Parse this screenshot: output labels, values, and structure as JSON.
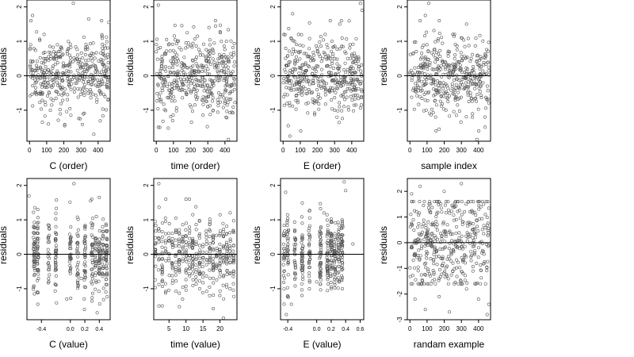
{
  "chart_data": [
    {
      "type": "scatter",
      "xlabel": "C (order)",
      "ylabel": "residuals",
      "xlim": [
        -15,
        470
      ],
      "ylim": [
        -1.9,
        2.2
      ],
      "xticks": [
        0,
        100,
        200,
        300,
        400
      ],
      "xtick_labels": [
        "0",
        "100",
        "200",
        "300",
        "400"
      ],
      "yticks": [
        -1,
        0,
        1,
        2
      ],
      "ytick_labels": [
        "-1",
        "0",
        "1",
        "2"
      ],
      "hline": 0,
      "grid": false,
      "points": [
        [
          5,
          0.8
        ],
        [
          18,
          1.75
        ],
        [
          40,
          0.3
        ],
        [
          75,
          -1.35
        ],
        [
          85,
          1.2
        ],
        [
          110,
          -1.4
        ],
        [
          145,
          0.5
        ],
        [
          190,
          0.6
        ],
        [
          205,
          -1.45
        ],
        [
          255,
          2.1
        ],
        [
          295,
          -1.25
        ],
        [
          345,
          1.65
        ],
        [
          375,
          -1.7
        ],
        [
          420,
          1.6
        ],
        [
          440,
          -0.6
        ],
        [
          462,
          1.55
        ]
      ]
    },
    {
      "type": "scatter",
      "xlabel": "time (order)",
      "ylabel": "residuals",
      "xlim": [
        -15,
        470
      ],
      "ylim": [
        -1.9,
        2.2
      ],
      "xticks": [
        0,
        100,
        200,
        300,
        400
      ],
      "xtick_labels": [
        "0",
        "100",
        "200",
        "300",
        "400"
      ],
      "yticks": [
        -1,
        0,
        1,
        2
      ],
      "ytick_labels": [
        "-1",
        "0",
        "1",
        "2"
      ],
      "hline": 0,
      "grid": false,
      "points": [
        [
          12,
          2.05
        ],
        [
          20,
          -1.5
        ],
        [
          60,
          1.05
        ],
        [
          95,
          -1.3
        ],
        [
          120,
          0.6
        ],
        [
          180,
          1.25
        ],
        [
          205,
          -1.35
        ],
        [
          240,
          1.15
        ],
        [
          300,
          -0.9
        ],
        [
          345,
          1.6
        ],
        [
          395,
          0.2
        ],
        [
          420,
          -1.85
        ],
        [
          455,
          -0.4
        ]
      ]
    },
    {
      "type": "scatter",
      "xlabel": "E (order)",
      "ylabel": "residuals",
      "xlim": [
        -15,
        470
      ],
      "ylim": [
        -1.9,
        2.2
      ],
      "xticks": [
        0,
        100,
        200,
        300,
        400
      ],
      "xtick_labels": [
        "0",
        "100",
        "200",
        "300",
        "400"
      ],
      "yticks": [
        -1,
        0,
        1,
        2
      ],
      "ytick_labels": [
        "-1",
        "0",
        "1",
        "2"
      ],
      "hline": 0,
      "grid": false,
      "points": [
        [
          5,
          1.2
        ],
        [
          30,
          -1.45
        ],
        [
          40,
          -1.75
        ],
        [
          55,
          1.8
        ],
        [
          90,
          1.2
        ],
        [
          150,
          -0.4
        ],
        [
          200,
          0.8
        ],
        [
          245,
          1.2
        ],
        [
          300,
          -1.0
        ],
        [
          330,
          1.5
        ],
        [
          390,
          0.9
        ],
        [
          450,
          2.1
        ],
        [
          460,
          1.9
        ]
      ]
    },
    {
      "type": "scatter",
      "xlabel": "sample index",
      "ylabel": "residuals",
      "xlim": [
        -15,
        470
      ],
      "ylim": [
        -1.9,
        2.2
      ],
      "xticks": [
        0,
        100,
        200,
        300,
        400
      ],
      "xtick_labels": [
        "0",
        "100",
        "200",
        "300",
        "400"
      ],
      "yticks": [
        -1,
        0,
        1,
        2
      ],
      "ytick_labels": [
        "-1",
        "0",
        "1",
        "2"
      ],
      "hline": 0,
      "grid": false,
      "points": [
        [
          60,
          1.6
        ],
        [
          90,
          1.75
        ],
        [
          110,
          2.1
        ],
        [
          150,
          -1.2
        ],
        [
          170,
          -1.55
        ],
        [
          210,
          -1.0
        ],
        [
          250,
          1.2
        ],
        [
          300,
          1.1
        ],
        [
          330,
          1.5
        ],
        [
          390,
          -1.85
        ],
        [
          440,
          0.6
        ]
      ]
    },
    {
      "type": "scatter",
      "xlabel": "C (value)",
      "ylabel": "residuals",
      "xlim": [
        -0.6,
        0.55
      ],
      "ylim": [
        -1.9,
        2.2
      ],
      "xticks": [
        -0.4,
        0.0,
        0.2,
        0.4
      ],
      "xtick_labels": [
        "-0.4",
        "0.0",
        "0.2",
        "0.4"
      ],
      "yticks": [
        -1,
        0,
        1,
        2
      ],
      "ytick_labels": [
        "-1",
        "0",
        "1",
        "2"
      ],
      "hline": 0,
      "grid": false,
      "points": [
        [
          -0.57,
          1.7
        ],
        [
          -0.45,
          1.3
        ],
        [
          -0.45,
          -1.45
        ],
        [
          -0.2,
          0.8
        ],
        [
          -0.05,
          -1.3
        ],
        [
          0.05,
          2.05
        ],
        [
          0.15,
          -0.7
        ],
        [
          0.28,
          1.55
        ],
        [
          0.37,
          -1.7
        ],
        [
          0.4,
          1.65
        ],
        [
          0.5,
          -0.6
        ]
      ]
    },
    {
      "type": "scatter",
      "xlabel": "time (value)",
      "ylabel": "residuals",
      "xlim": [
        0.5,
        25
      ],
      "ylim": [
        -1.9,
        2.2
      ],
      "xticks": [
        5,
        10,
        15,
        20
      ],
      "xtick_labels": [
        "5",
        "10",
        "15",
        "20"
      ],
      "yticks": [
        -1,
        0,
        1,
        2
      ],
      "ytick_labels": [
        "-1",
        "0",
        "1",
        "2"
      ],
      "hline": 0,
      "grid": false,
      "points": [
        [
          2,
          2.05
        ],
        [
          3,
          -1.5
        ],
        [
          7,
          1.05
        ],
        [
          9,
          -1.3
        ],
        [
          11,
          1.6
        ],
        [
          12,
          1.15
        ],
        [
          14,
          -1.0
        ],
        [
          18,
          0.55
        ],
        [
          21,
          -1.85
        ],
        [
          23,
          1.2
        ],
        [
          24,
          0.25
        ]
      ]
    },
    {
      "type": "scatter",
      "xlabel": "E (value)",
      "ylabel": "residuals",
      "xlim": [
        -0.5,
        0.65
      ],
      "ylim": [
        -1.9,
        2.2
      ],
      "xticks": [
        -0.4,
        0.0,
        0.2,
        0.4,
        0.6
      ],
      "xtick_labels": [
        "-0.4",
        "0.0",
        "0.2",
        "0.4",
        "0.6"
      ],
      "yticks": [
        -1,
        0,
        1,
        2
      ],
      "ytick_labels": [
        "-1",
        "0",
        "1",
        "2"
      ],
      "hline": 0,
      "grid": false,
      "points": [
        [
          -0.43,
          1.8
        ],
        [
          -0.42,
          -1.75
        ],
        [
          -0.35,
          -1.45
        ],
        [
          -0.2,
          0.9
        ],
        [
          0.0,
          -0.8
        ],
        [
          0.1,
          1.2
        ],
        [
          0.2,
          -1.0
        ],
        [
          0.25,
          0.6
        ],
        [
          0.38,
          2.1
        ],
        [
          0.4,
          1.85
        ],
        [
          0.5,
          0.3
        ]
      ]
    },
    {
      "type": "scatter",
      "xlabel": "randam example",
      "ylabel": "residuals",
      "xlim": [
        -15,
        470
      ],
      "ylim": [
        -3.0,
        2.5
      ],
      "xticks": [
        0,
        100,
        200,
        300,
        400
      ],
      "xtick_labels": [
        "0",
        "100",
        "200",
        "300",
        "400"
      ],
      "yticks": [
        -3,
        -2,
        -1,
        0,
        1,
        2
      ],
      "ytick_labels": [
        "-3",
        "-2",
        "-1",
        "0",
        "1",
        "2"
      ],
      "hline": 0,
      "grid": false,
      "points": [
        [
          10,
          1.9
        ],
        [
          30,
          -2.2
        ],
        [
          60,
          2.2
        ],
        [
          90,
          -2.6
        ],
        [
          120,
          1.2
        ],
        [
          170,
          -2.1
        ],
        [
          200,
          2.0
        ],
        [
          230,
          -2.7
        ],
        [
          270,
          0.9
        ],
        [
          300,
          2.3
        ],
        [
          330,
          -1.8
        ],
        [
          370,
          1.6
        ],
        [
          400,
          -2.2
        ],
        [
          430,
          1.5
        ],
        [
          450,
          -2.8
        ],
        [
          460,
          -2.4
        ]
      ]
    }
  ]
}
